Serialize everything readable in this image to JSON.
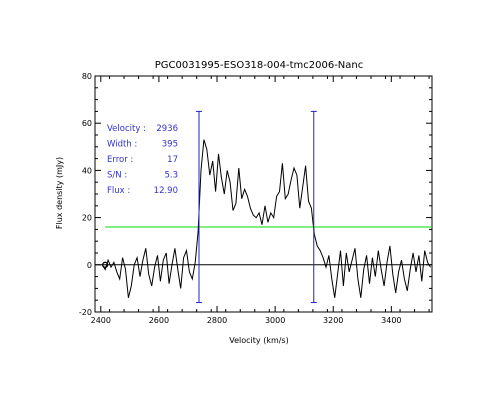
{
  "chart_data": {
    "type": "line",
    "title": "PGC0031995-ESO318-004-tmc2006-Nanc",
    "xlabel": "Velocity (km/s)",
    "ylabel": "Flux density (mJy)",
    "xlim": [
      2380,
      3540
    ],
    "ylim": [
      -20,
      80
    ],
    "x_ticks": [
      2400,
      2600,
      2800,
      3000,
      3200,
      3400
    ],
    "y_ticks": [
      -20,
      0,
      20,
      40,
      60,
      80
    ],
    "grid": false,
    "stats": [
      {
        "label": "Velocity :",
        "value": "2936"
      },
      {
        "label": "Width :",
        "value": "395"
      },
      {
        "label": "Error :",
        "value": "17"
      },
      {
        "label": "S/N :",
        "value": "5.3"
      },
      {
        "label": "Flux :",
        "value": "12.90"
      }
    ],
    "zero_line": 0,
    "threshold_line": 16,
    "vertical_markers": [
      {
        "x": 2738,
        "y_top": 65,
        "y_bottom": -16
      },
      {
        "x": 3133,
        "y_top": 65,
        "y_bottom": -16
      }
    ],
    "start_marker": {
      "x": 2415,
      "y": 0
    },
    "spectrum": {
      "x": [
        2405,
        2415,
        2425,
        2435,
        2445,
        2455,
        2465,
        2475,
        2485,
        2495,
        2505,
        2515,
        2525,
        2535,
        2545,
        2555,
        2565,
        2575,
        2585,
        2595,
        2605,
        2615,
        2625,
        2635,
        2645,
        2655,
        2665,
        2675,
        2685,
        2695,
        2705,
        2715,
        2725,
        2735,
        2745,
        2755,
        2765,
        2775,
        2785,
        2795,
        2805,
        2815,
        2825,
        2835,
        2845,
        2855,
        2865,
        2875,
        2885,
        2895,
        2905,
        2915,
        2925,
        2935,
        2945,
        2955,
        2965,
        2975,
        2985,
        2995,
        3005,
        3015,
        3025,
        3035,
        3045,
        3055,
        3065,
        3075,
        3085,
        3095,
        3105,
        3115,
        3125,
        3135,
        3145,
        3155,
        3165,
        3175,
        3185,
        3195,
        3205,
        3215,
        3225,
        3235,
        3245,
        3255,
        3265,
        3275,
        3285,
        3295,
        3305,
        3315,
        3325,
        3335,
        3345,
        3355,
        3365,
        3375,
        3385,
        3395,
        3405,
        3415,
        3425,
        3435,
        3445,
        3455,
        3465,
        3475,
        3485,
        3495,
        3505,
        3515,
        3525,
        3535
      ],
      "y": [
        0,
        -2,
        2,
        -1,
        1,
        -3,
        -6,
        3,
        -2,
        -14,
        -9,
        0,
        3,
        -5,
        2,
        7,
        -4,
        -9,
        -1,
        4,
        -7,
        2,
        5,
        -8,
        0,
        7,
        -2,
        -10,
        3,
        6,
        -3,
        -6,
        1,
        14,
        40,
        53,
        49,
        38,
        44,
        31,
        47,
        37,
        30,
        40,
        35,
        23,
        26,
        41,
        28,
        32,
        29,
        24,
        21,
        20,
        22,
        17,
        25,
        18,
        22,
        20,
        29,
        31,
        43,
        28,
        30,
        36,
        41,
        38,
        24,
        33,
        42,
        27,
        24,
        13,
        8,
        6,
        3,
        -1,
        4,
        -6,
        -14,
        -4,
        6,
        -9,
        5,
        -3,
        2,
        7,
        -6,
        -14,
        -2,
        4,
        -8,
        3,
        -5,
        6,
        -2,
        -9,
        1,
        8,
        -4,
        -12,
        -3,
        2,
        -6,
        -11,
        -2,
        5,
        -3,
        4,
        -7,
        6,
        1,
        -1
      ]
    },
    "colors": {
      "spectrum": "#000000",
      "zero_line": "#000000",
      "threshold_line": "#00dd00",
      "markers": "#2222cc",
      "stats_text": "#3333cc"
    }
  }
}
